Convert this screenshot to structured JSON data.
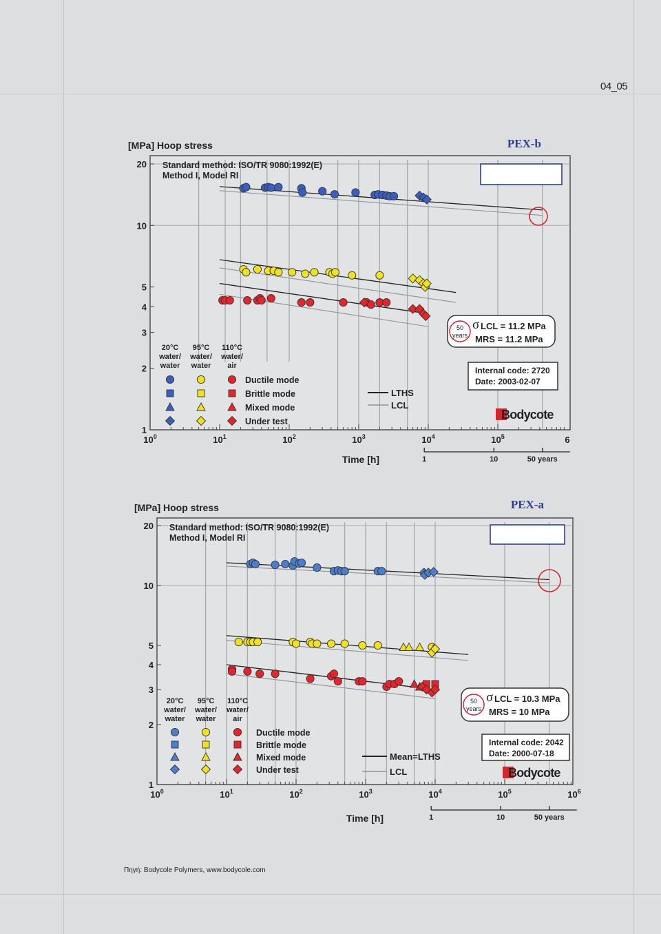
{
  "page": {
    "code": "04_05",
    "source": "Πηγή: Bodycole Polymers, www.bodycole.com"
  },
  "chart_data": [
    {
      "type": "scatter",
      "title": "PEX-b",
      "ylabel": "[MPa] Hoop stress",
      "xlabel": "Time [h]",
      "method_line1": "Standard method: ISO/TR 9080:1992(E)",
      "method_line2": "Method I, Model RI",
      "x_scale": "log",
      "y_scale": "log",
      "xlim": [
        1,
        1000000
      ],
      "ylim": [
        1,
        20
      ],
      "y_ticks": [
        1,
        2,
        3,
        4,
        5,
        10,
        20
      ],
      "x_ticks": [
        "10 0",
        "10 1",
        "10 2",
        "10 3",
        "10 4",
        "10 5",
        "6"
      ],
      "years_ticks": [
        "1",
        "10",
        "50 years"
      ],
      "years_hours": [
        8760,
        87600,
        438000
      ],
      "vertical_lines_h": [
        5,
        12,
        20,
        48,
        100,
        500,
        1000,
        2000,
        5000,
        10000,
        100000,
        438000
      ],
      "sigma_label": "σ",
      "lcl_text": "LCL = 11.2 MPa",
      "mrs_text": "MRS = 11.2 MPa",
      "years_badge_1": "50",
      "years_badge_2": "years",
      "internal_code": "Internal code: 2720",
      "date": "Date: 2003-02-07",
      "logo_text": "Bodycote",
      "legend_headers": [
        "20°C\nwater/\nwater",
        "95°C\nwater/\nwater",
        "110°C\nwater/\nair"
      ],
      "legend_modes": [
        "Ductile mode",
        "Brittle mode",
        "Mixed mode",
        "Under test"
      ],
      "line_legend": [
        "LTHS",
        "LCL"
      ],
      "colors": {
        "20C": "#3a5fc4",
        "95C": "#f1e21c",
        "110C": "#e8232a"
      },
      "lines": [
        {
          "series": "20C",
          "lths": [
            [
              10,
              15.5
            ],
            [
              438000,
              11.9
            ]
          ],
          "lcl": [
            [
              10,
              14.8
            ],
            [
              438000,
              11.2
            ]
          ]
        },
        {
          "series": "95C",
          "lths": [
            [
              10,
              6.8
            ],
            [
              25000,
              4.7
            ]
          ],
          "lcl": [
            [
              10,
              6.2
            ],
            [
              25000,
              4.2
            ]
          ]
        },
        {
          "series": "110C",
          "lths": [
            [
              10,
              5.2
            ],
            [
              10000,
              3.7
            ]
          ],
          "lcl": [
            [
              10,
              4.6
            ],
            [
              10000,
              3.2
            ]
          ]
        }
      ],
      "series": [
        {
          "name": "20°C water/water",
          "key": "20C",
          "ductile": [
            [
              22,
              15.2
            ],
            [
              24,
              15.4
            ],
            [
              45,
              15.3
            ],
            [
              50,
              15.4
            ],
            [
              55,
              15.3
            ],
            [
              70,
              15.4
            ],
            [
              150,
              15.2
            ],
            [
              155,
              14.5
            ],
            [
              300,
              14.7
            ],
            [
              450,
              14.2
            ],
            [
              900,
              14.5
            ],
            [
              1700,
              14.1
            ],
            [
              1900,
              14.2
            ],
            [
              2200,
              14.1
            ],
            [
              2500,
              14.0
            ],
            [
              2800,
              13.9
            ],
            [
              3200,
              13.9
            ]
          ],
          "under_test": [
            [
              7500,
              14.0
            ],
            [
              8500,
              13.7
            ],
            [
              9500,
              13.4
            ]
          ]
        },
        {
          "name": "95°C water/water",
          "key": "95C",
          "ductile": [
            [
              22,
              6.1
            ],
            [
              24,
              5.9
            ],
            [
              35,
              6.1
            ],
            [
              50,
              6.0
            ],
            [
              60,
              6.0
            ],
            [
              70,
              5.9
            ],
            [
              110,
              5.9
            ],
            [
              170,
              5.8
            ],
            [
              230,
              5.9
            ],
            [
              380,
              5.9
            ],
            [
              420,
              5.8
            ],
            [
              460,
              5.9
            ],
            [
              800,
              5.7
            ],
            [
              2000,
              5.7
            ]
          ],
          "under_test": [
            [
              6000,
              5.5
            ],
            [
              7500,
              5.4
            ],
            [
              8500,
              5.2
            ],
            [
              9000,
              5.0
            ],
            [
              9500,
              5.2
            ]
          ]
        },
        {
          "name": "110°C water/air",
          "key": "110C",
          "ductile": [
            [
              11,
              4.3
            ],
            [
              12,
              4.3
            ],
            [
              14,
              4.3
            ],
            [
              25,
              4.3
            ],
            [
              35,
              4.3
            ],
            [
              38,
              4.4
            ],
            [
              40,
              4.3
            ],
            [
              55,
              4.4
            ],
            [
              150,
              4.2
            ],
            [
              200,
              4.2
            ],
            [
              600,
              4.2
            ],
            [
              1300,
              4.2
            ],
            [
              1500,
              4.1
            ],
            [
              2000,
              4.2
            ],
            [
              2500,
              4.2
            ]
          ],
          "under_test": [
            [
              1200,
              4.2
            ],
            [
              6000,
              3.9
            ],
            [
              7500,
              3.9
            ],
            [
              8500,
              3.7
            ],
            [
              9200,
              3.6
            ]
          ]
        }
      ]
    },
    {
      "type": "scatter",
      "title": "PEX-a",
      "ylabel": "[MPa] Hoop stress",
      "xlabel": "Time [h]",
      "method_line1": "Standard method: ISO/TR 9080:1992(E)",
      "method_line2": "Method I, Model RI",
      "x_scale": "log",
      "y_scale": "log",
      "xlim": [
        1,
        1000000
      ],
      "ylim": [
        1,
        20
      ],
      "y_ticks": [
        1,
        2,
        3,
        4,
        5,
        10,
        20
      ],
      "x_ticks": [
        "10 0",
        "10 1",
        "10 2",
        "10 3",
        "10 4",
        "10 5",
        "10 6"
      ],
      "years_ticks": [
        "1",
        "10",
        "50 years"
      ],
      "years_hours": [
        8760,
        87600,
        438000
      ],
      "vertical_lines_h": [
        5,
        10,
        20,
        50,
        100,
        500,
        1000,
        2000,
        5000,
        10000,
        100000,
        438000
      ],
      "sigma_label": "σ",
      "lcl_text": "LCL = 10.3 MPa",
      "mrs_text": "MRS = 10 MPa",
      "years_badge_1": "50",
      "years_badge_2": "years",
      "internal_code": "Internal code: 2042",
      "date": "Date: 2000-07-18",
      "logo_text": "Bodycote",
      "legend_headers": [
        "20°C\nwater/\nwater",
        "95°C\nwater/\nwater",
        "110°C\nwater/\nair"
      ],
      "legend_modes": [
        "Ductile mode",
        "Brittle mode",
        "Mixed mode",
        "Under test"
      ],
      "line_legend": [
        "Mean=LTHS",
        "LCL"
      ],
      "colors": {
        "20C": "#4a7fd0",
        "95C": "#f1e21c",
        "110C": "#e8232a"
      },
      "lines": [
        {
          "series": "20C",
          "lths": [
            [
              10,
              13.0
            ],
            [
              438000,
              10.7
            ]
          ],
          "lcl": [
            [
              10,
              12.5
            ],
            [
              438000,
              10.3
            ]
          ]
        },
        {
          "series": "95C",
          "lths": [
            [
              10,
              5.6
            ],
            [
              30000,
              4.5
            ]
          ],
          "lcl": [
            [
              10,
              5.3
            ],
            [
              30000,
              4.2
            ]
          ]
        },
        {
          "series": "110C",
          "lths": [
            [
              10,
              4.0
            ],
            [
              10000,
              3.0
            ]
          ],
          "lcl": [
            [
              10,
              3.6
            ],
            [
              10000,
              2.7
            ]
          ]
        }
      ],
      "series": [
        {
          "name": "20°C water/water",
          "key": "20C",
          "ductile": [
            [
              22,
              12.8
            ],
            [
              24,
              13.0
            ],
            [
              26,
              12.8
            ],
            [
              50,
              12.7
            ],
            [
              70,
              12.8
            ],
            [
              90,
              12.6
            ],
            [
              95,
              13.2
            ],
            [
              110,
              12.9
            ],
            [
              120,
              13.0
            ],
            [
              200,
              12.3
            ],
            [
              350,
              11.8
            ],
            [
              400,
              11.9
            ],
            [
              450,
              11.8
            ],
            [
              500,
              11.8
            ],
            [
              1500,
              11.8
            ],
            [
              1700,
              11.8
            ]
          ],
          "under_test": [
            [
              6900,
              11.6
            ],
            [
              7100,
              11.3
            ],
            [
              8000,
              11.6
            ],
            [
              9500,
              11.7
            ]
          ]
        },
        {
          "name": "95°C water/water",
          "key": "95C",
          "ductile": [
            [
              15,
              5.2
            ],
            [
              20,
              5.2
            ],
            [
              22,
              5.2
            ],
            [
              24,
              5.2
            ],
            [
              28,
              5.2
            ],
            [
              90,
              5.2
            ],
            [
              100,
              5.1
            ],
            [
              160,
              5.2
            ],
            [
              170,
              5.1
            ],
            [
              200,
              5.1
            ],
            [
              320,
              5.1
            ],
            [
              500,
              5.1
            ],
            [
              900,
              5.0
            ],
            [
              1500,
              5.0
            ],
            [
              9000,
              4.9
            ]
          ],
          "mixed": [
            [
              3500,
              4.9
            ],
            [
              4200,
              4.9
            ],
            [
              6000,
              4.9
            ],
            [
              9500,
              4.8
            ]
          ],
          "under_test": [
            [
              9000,
              4.6
            ],
            [
              10000,
              4.8
            ]
          ]
        },
        {
          "name": "110°C water/air",
          "key": "110C",
          "ductile": [
            [
              12,
              3.8
            ],
            [
              12,
              3.7
            ],
            [
              20,
              3.7
            ],
            [
              30,
              3.6
            ],
            [
              50,
              3.6
            ],
            [
              160,
              3.4
            ],
            [
              320,
              3.5
            ],
            [
              350,
              3.6
            ],
            [
              400,
              3.3
            ],
            [
              800,
              3.3
            ],
            [
              900,
              3.3
            ],
            [
              2000,
              3.1
            ],
            [
              2200,
              3.2
            ],
            [
              2600,
              3.2
            ],
            [
              3000,
              3.3
            ]
          ],
          "brittle": [
            [
              7500,
              3.2
            ],
            [
              10000,
              3.2
            ]
          ],
          "mixed": [
            [
              5000,
              3.2
            ],
            [
              6000,
              3.1
            ]
          ],
          "under_test": [
            [
              6500,
              3.1
            ],
            [
              7500,
              3.0
            ],
            [
              9000,
              2.9
            ],
            [
              10000,
              3.0
            ]
          ]
        }
      ]
    }
  ]
}
